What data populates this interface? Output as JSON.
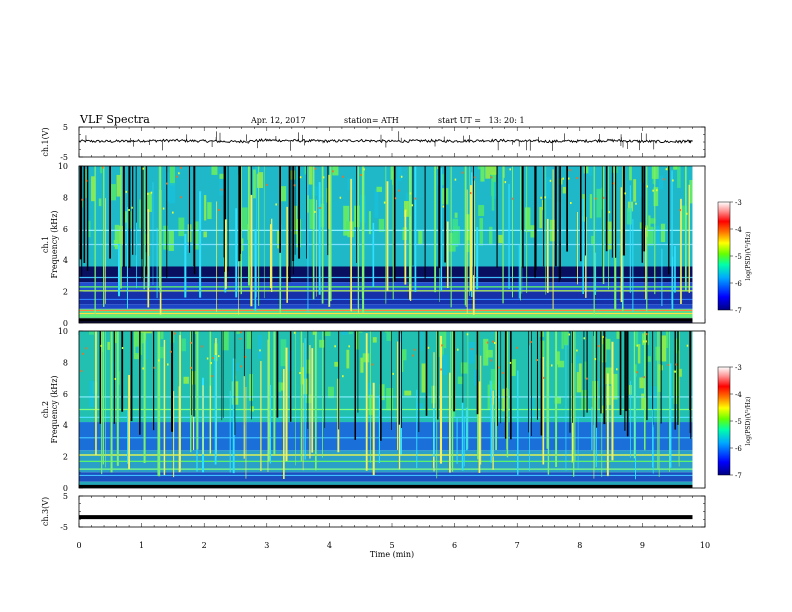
{
  "header": {
    "title": "VLF Spectra",
    "date": "Apr. 12, 2017",
    "station": "station= ATH",
    "start": "start UT =   13: 20: 1"
  },
  "colorbar": {
    "label": "log(PSD)(V²/Hz)",
    "ticks": [
      "-3",
      "-4",
      "-5",
      "-6",
      "-7"
    ],
    "colors": [
      "#000080",
      "#0000ff",
      "#00aaff",
      "#00ffaa",
      "#66ff00",
      "#ffff00",
      "#ff7700",
      "#ff0000",
      "#ff9999",
      "#ffffff"
    ]
  },
  "chart_data": [
    {
      "type": "line",
      "ylabel": "ch.1(V)",
      "yticks": [
        "5",
        "-5"
      ],
      "ylim": [
        -5,
        5
      ],
      "xlim": [
        0,
        10
      ],
      "x": [
        0,
        0.5,
        1,
        1.5,
        2,
        2.5,
        3,
        3.5,
        4,
        4.5,
        5,
        5.5,
        6,
        6.5,
        7,
        7.5,
        8,
        8.5,
        9,
        9.5,
        9.8
      ],
      "y": [
        0.3,
        0.2,
        0.4,
        0.5,
        0.3,
        0.1,
        0.6,
        0.4,
        0.3,
        0.5,
        0.2,
        0.4,
        0.3,
        0.5,
        0.4,
        0.2,
        0.3,
        0.5,
        0.2,
        0.1,
        0.2
      ]
    },
    {
      "type": "heatmap",
      "ylabel": "ch.1\nFrequency (kHz)",
      "yticks": [
        "0",
        "2",
        "4",
        "6",
        "8",
        "10"
      ],
      "ylim": [
        0,
        10
      ],
      "xlim": [
        0,
        10
      ]
    },
    {
      "type": "heatmap",
      "ylabel": "ch.2\nFrequency (kHz)",
      "yticks": [
        "0",
        "2",
        "4",
        "6",
        "8",
        "10"
      ],
      "ylim": [
        0,
        10
      ],
      "xlim": [
        0,
        10
      ]
    },
    {
      "type": "line",
      "ylabel": "ch.3(V)",
      "yticks": [
        "5",
        "-5"
      ],
      "ylim": [
        -5,
        5
      ],
      "xlim": [
        0,
        10
      ],
      "x": [
        0,
        9.8
      ],
      "y": [
        -1.8,
        -1.8
      ],
      "xlabel": "Time (min)",
      "xticks": [
        "0",
        "1",
        "2",
        "3",
        "4",
        "5",
        "6",
        "7",
        "8",
        "9",
        "10"
      ]
    }
  ]
}
